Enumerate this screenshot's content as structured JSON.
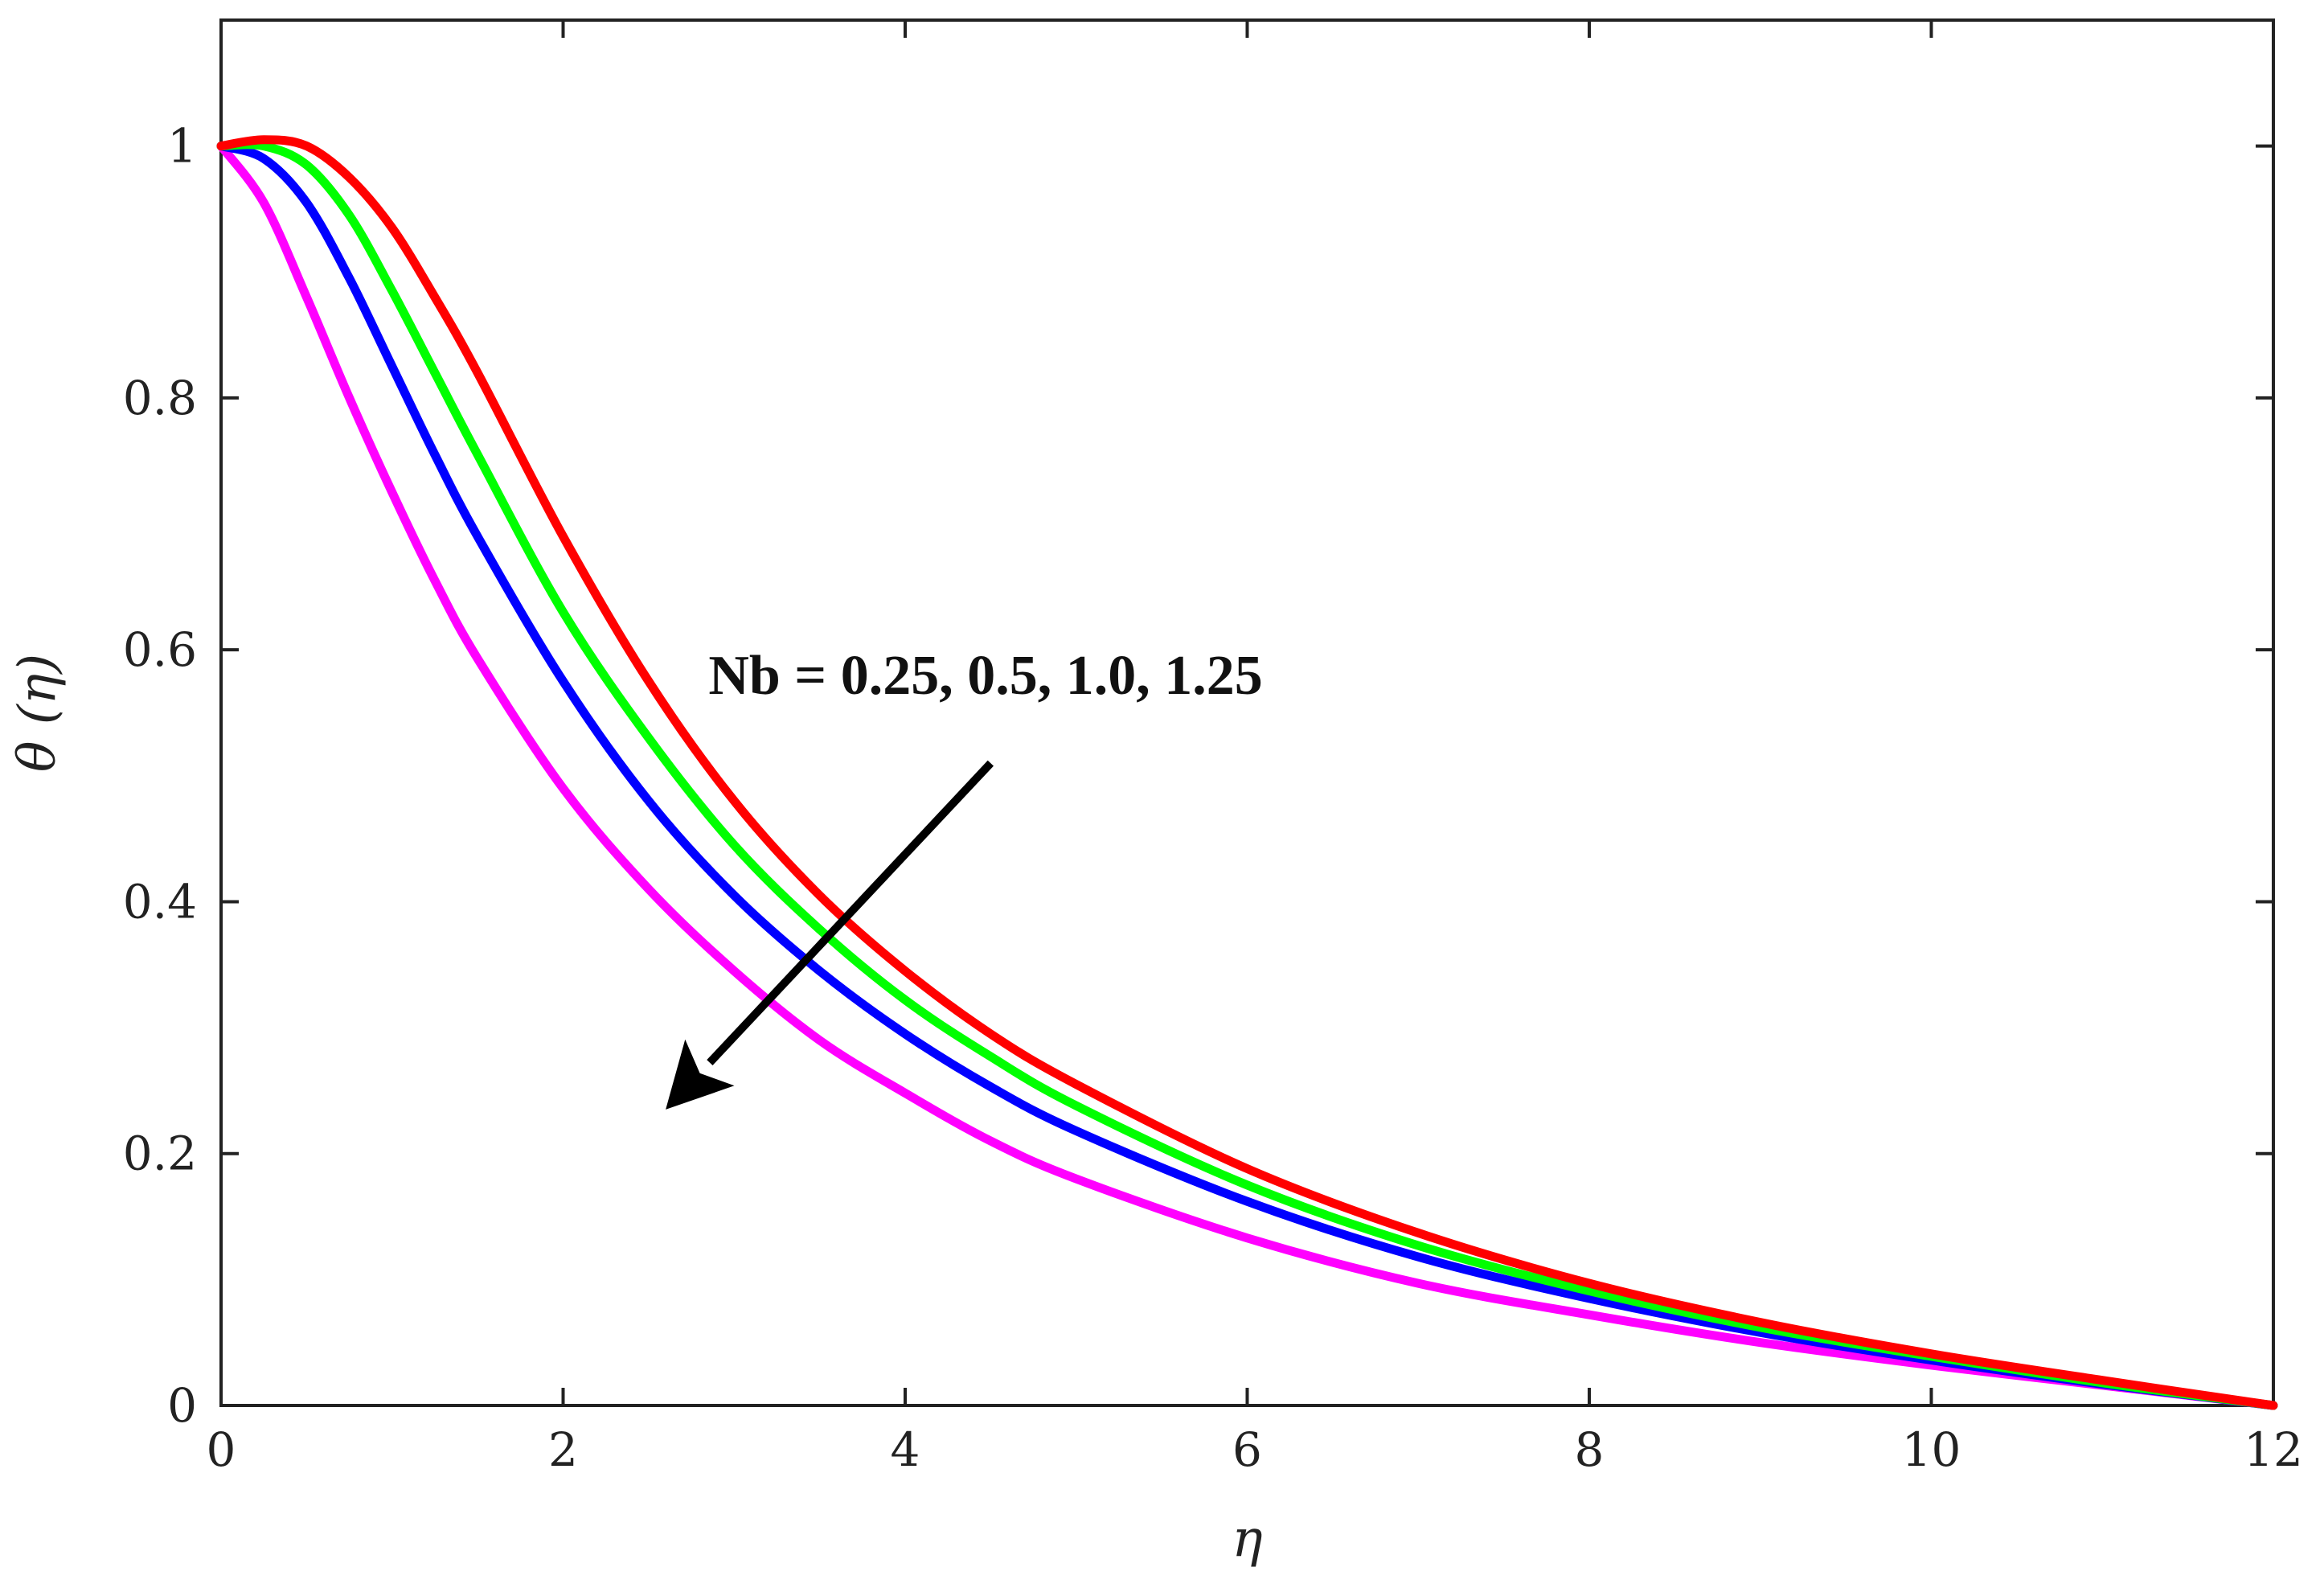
{
  "chart_data": {
    "type": "line",
    "xlabel": "η",
    "ylabel": "θ (η)",
    "xlim": [
      0,
      12
    ],
    "ylim": [
      0,
      1.1
    ],
    "xticks": [
      0,
      2,
      4,
      6,
      8,
      10,
      12
    ],
    "yticks": [
      0,
      0.2,
      0.4,
      0.6,
      0.8,
      1
    ],
    "xtick_labels": [
      "0",
      "2",
      "4",
      "6",
      "8",
      "10",
      "12"
    ],
    "ytick_labels": [
      "0",
      "0.2",
      "0.4",
      "0.6",
      "0.8",
      "1"
    ],
    "grid": false,
    "x": [
      0,
      0.25,
      0.5,
      0.75,
      1,
      1.25,
      1.5,
      2,
      2.5,
      3,
      3.5,
      4,
      4.5,
      5,
      6,
      7,
      8,
      9,
      10,
      11,
      12
    ],
    "series": [
      {
        "color": "#ff00ff",
        "values": [
          1.0,
          0.955,
          0.88,
          0.8,
          0.725,
          0.655,
          0.593,
          0.49,
          0.41,
          0.345,
          0.29,
          0.248,
          0.21,
          0.18,
          0.133,
          0.097,
          0.072,
          0.05,
          0.032,
          0.016,
          0.0
        ]
      },
      {
        "color": "#0000ff",
        "values": [
          1.0,
          0.99,
          0.955,
          0.895,
          0.825,
          0.755,
          0.69,
          0.575,
          0.48,
          0.405,
          0.345,
          0.295,
          0.253,
          0.218,
          0.162,
          0.118,
          0.085,
          0.058,
          0.036,
          0.017,
          0.0
        ]
      },
      {
        "color": "#00ff00",
        "values": [
          1.0,
          1.0,
          0.985,
          0.945,
          0.885,
          0.82,
          0.755,
          0.63,
          0.53,
          0.445,
          0.378,
          0.322,
          0.277,
          0.238,
          0.175,
          0.127,
          0.091,
          0.062,
          0.039,
          0.018,
          0.0
        ]
      },
      {
        "color": "#ff0000",
        "values": [
          1.0,
          1.005,
          1.0,
          0.975,
          0.935,
          0.88,
          0.82,
          0.69,
          0.575,
          0.48,
          0.405,
          0.345,
          0.295,
          0.255,
          0.188,
          0.137,
          0.097,
          0.066,
          0.041,
          0.02,
          0.0
        ]
      }
    ],
    "annotations": [
      {
        "text": "Nb = 0.25, 0.5, 1.0, 1.25",
        "text_at": [
          2.85,
          0.565
        ],
        "arrow_from": [
          4.5,
          0.51
        ],
        "arrow_to": [
          2.6,
          0.235
        ]
      }
    ]
  }
}
